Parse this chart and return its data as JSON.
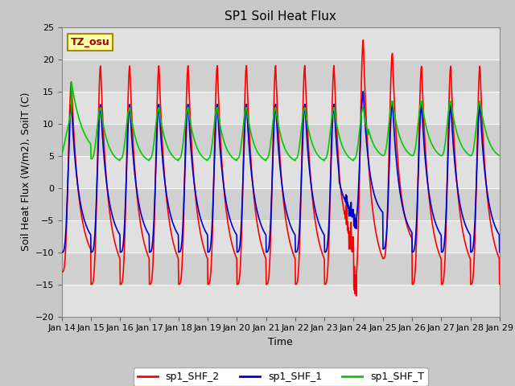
{
  "title": "SP1 Soil Heat Flux",
  "xlabel": "Time",
  "ylabel": "Soil Heat Flux (W/m2), SoilT (C)",
  "ylim": [
    -20,
    25
  ],
  "xlim": [
    0,
    15
  ],
  "xtick_labels": [
    "Jan 14",
    "Jan 15",
    "Jan 16",
    "Jan 17",
    "Jan 18",
    "Jan 19",
    "Jan 20",
    "Jan 21",
    "Jan 22",
    "Jan 23",
    "Jan 24",
    "Jan 25",
    "Jan 26",
    "Jan 27",
    "Jan 28",
    "Jan 29"
  ],
  "ytick_values": [
    -20,
    -15,
    -10,
    -5,
    0,
    5,
    10,
    15,
    20,
    25
  ],
  "fig_bg_color": "#c8c8c8",
  "plot_bg_color": "#e8e8e8",
  "grid_color": "#ffffff",
  "line_color_shf2": "#ff0000",
  "line_color_shf1": "#0000cc",
  "line_color_shfT": "#00cc00",
  "legend_labels": [
    "sp1_SHF_2",
    "sp1_SHF_1",
    "sp1_SHF_T"
  ],
  "tz_label": "TZ_osu",
  "tz_box_facecolor": "#ffffaa",
  "tz_box_edgecolor": "#aa8800",
  "tz_text_color": "#aa0000",
  "title_fontsize": 11,
  "axis_label_fontsize": 9,
  "tick_fontsize": 8,
  "linewidth": 1.2
}
